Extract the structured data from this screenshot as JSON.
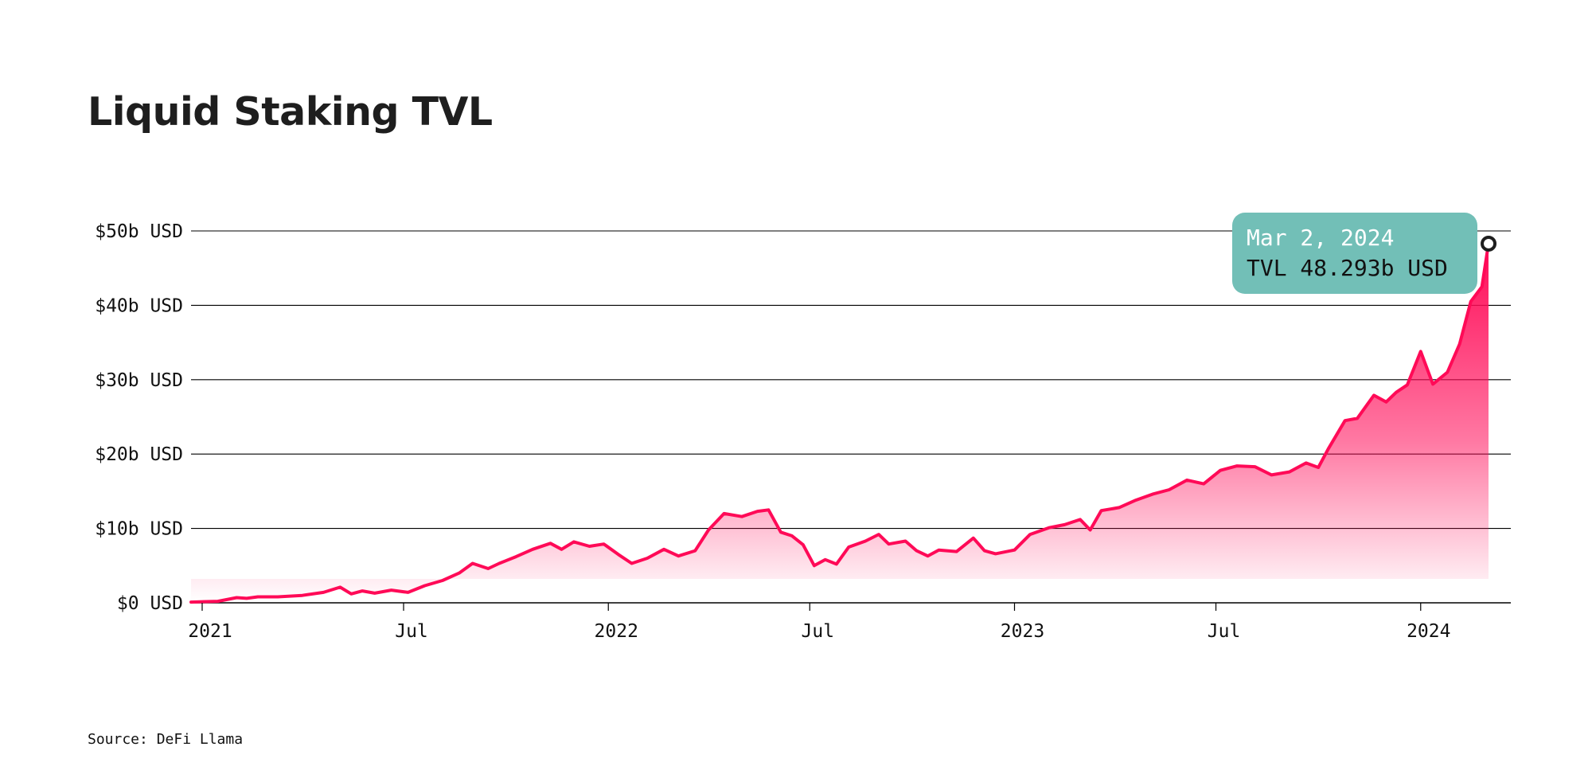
{
  "chart_data": {
    "type": "area",
    "title": "Liquid Staking TVL",
    "y_ticks": [
      {
        "value": 0,
        "label": "$0 USD"
      },
      {
        "value": 10,
        "label": "$10b USD"
      },
      {
        "value": 20,
        "label": "$20b USD"
      },
      {
        "value": 30,
        "label": "$30b USD"
      },
      {
        "value": 40,
        "label": "$40b USD"
      },
      {
        "value": 50,
        "label": "$50b USD"
      }
    ],
    "x_ticks": [
      {
        "date": "2021-01-01",
        "label": "2021"
      },
      {
        "date": "2021-07-01",
        "label": "Jul"
      },
      {
        "date": "2022-01-01",
        "label": "2022"
      },
      {
        "date": "2022-07-01",
        "label": "Jul"
      },
      {
        "date": "2023-01-01",
        "label": "2023"
      },
      {
        "date": "2023-07-01",
        "label": "Jul"
      },
      {
        "date": "2024-01-01",
        "label": "2024"
      }
    ],
    "xlim": [
      "2020-12-22",
      "2024-03-22"
    ],
    "ylim": [
      0,
      50
    ],
    "grid": true,
    "colors": {
      "line": "#ff0a57",
      "grid": "#000000",
      "tooltip_bg": "#72bfb7",
      "tooltip_date_text": "#ffffff"
    },
    "series": [
      {
        "unit": "b USD",
        "points": [
          [
            "2020-12-22",
            0.1
          ],
          [
            "2021-01-15",
            0.2
          ],
          [
            "2021-02-01",
            0.7
          ],
          [
            "2021-02-10",
            0.6
          ],
          [
            "2021-02-20",
            0.8
          ],
          [
            "2021-03-10",
            0.8
          ],
          [
            "2021-04-01",
            1.0
          ],
          [
            "2021-04-20",
            1.4
          ],
          [
            "2021-05-05",
            2.1
          ],
          [
            "2021-05-15",
            1.2
          ],
          [
            "2021-05-25",
            1.6
          ],
          [
            "2021-06-05",
            1.3
          ],
          [
            "2021-06-20",
            1.7
          ],
          [
            "2021-07-05",
            1.4
          ],
          [
            "2021-07-20",
            2.3
          ],
          [
            "2021-08-05",
            3.0
          ],
          [
            "2021-08-20",
            4.0
          ],
          [
            "2021-09-01",
            5.3
          ],
          [
            "2021-09-15",
            4.6
          ],
          [
            "2021-09-25",
            5.3
          ],
          [
            "2021-10-10",
            6.2
          ],
          [
            "2021-10-25",
            7.2
          ],
          [
            "2021-11-10",
            8.0
          ],
          [
            "2021-11-20",
            7.2
          ],
          [
            "2021-12-01",
            8.2
          ],
          [
            "2021-12-15",
            7.6
          ],
          [
            "2021-12-28",
            7.9
          ],
          [
            "2022-01-10",
            6.5
          ],
          [
            "2022-01-22",
            5.3
          ],
          [
            "2022-02-05",
            6.0
          ],
          [
            "2022-02-20",
            7.2
          ],
          [
            "2022-03-05",
            6.3
          ],
          [
            "2022-03-20",
            7.0
          ],
          [
            "2022-04-01",
            9.8
          ],
          [
            "2022-04-15",
            12.0
          ],
          [
            "2022-05-01",
            11.6
          ],
          [
            "2022-05-15",
            12.3
          ],
          [
            "2022-05-25",
            12.5
          ],
          [
            "2022-06-05",
            9.5
          ],
          [
            "2022-06-15",
            9.0
          ],
          [
            "2022-06-25",
            7.8
          ],
          [
            "2022-07-05",
            5.0
          ],
          [
            "2022-07-15",
            5.8
          ],
          [
            "2022-07-25",
            5.2
          ],
          [
            "2022-08-05",
            7.5
          ],
          [
            "2022-08-20",
            8.3
          ],
          [
            "2022-09-01",
            9.2
          ],
          [
            "2022-09-10",
            7.9
          ],
          [
            "2022-09-25",
            8.3
          ],
          [
            "2022-10-05",
            7.0
          ],
          [
            "2022-10-15",
            6.3
          ],
          [
            "2022-10-25",
            7.1
          ],
          [
            "2022-11-10",
            6.9
          ],
          [
            "2022-11-25",
            8.7
          ],
          [
            "2022-12-05",
            7.0
          ],
          [
            "2022-12-15",
            6.6
          ],
          [
            "2023-01-01",
            7.1
          ],
          [
            "2023-01-15",
            9.2
          ],
          [
            "2023-02-01",
            10.1
          ],
          [
            "2023-02-15",
            10.5
          ],
          [
            "2023-03-01",
            11.2
          ],
          [
            "2023-03-10",
            9.8
          ],
          [
            "2023-03-20",
            12.4
          ],
          [
            "2023-04-05",
            12.8
          ],
          [
            "2023-04-20",
            13.8
          ],
          [
            "2023-05-05",
            14.6
          ],
          [
            "2023-05-20",
            15.2
          ],
          [
            "2023-06-05",
            16.5
          ],
          [
            "2023-06-20",
            16.0
          ],
          [
            "2023-07-05",
            17.8
          ],
          [
            "2023-07-20",
            18.4
          ],
          [
            "2023-08-05",
            18.3
          ],
          [
            "2023-08-20",
            17.2
          ],
          [
            "2023-09-05",
            17.6
          ],
          [
            "2023-09-20",
            18.8
          ],
          [
            "2023-10-01",
            18.2
          ],
          [
            "2023-10-10",
            20.7
          ],
          [
            "2023-10-25",
            24.5
          ],
          [
            "2023-11-05",
            24.8
          ],
          [
            "2023-11-20",
            27.9
          ],
          [
            "2023-12-01",
            27.0
          ],
          [
            "2023-12-10",
            28.3
          ],
          [
            "2023-12-20",
            29.3
          ],
          [
            "2024-01-01",
            33.8
          ],
          [
            "2024-01-12",
            29.4
          ],
          [
            "2024-01-25",
            31.0
          ],
          [
            "2024-02-05",
            34.8
          ],
          [
            "2024-02-15",
            40.5
          ],
          [
            "2024-02-25",
            42.5
          ],
          [
            "2024-03-02",
            48.3
          ]
        ]
      }
    ],
    "tooltip": {
      "date_label": "Mar 2, 2024",
      "value_label": "TVL 48.293b USD",
      "date": "2024-03-02",
      "value": 48.293
    }
  },
  "source": "Source: DeFi Llama"
}
